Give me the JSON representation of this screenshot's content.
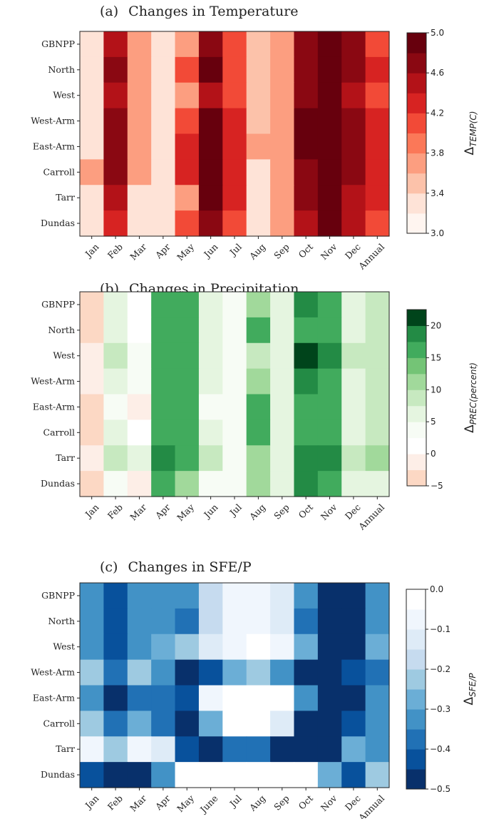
{
  "chart_data": [
    {
      "type": "heatmap",
      "title": "Changes in Temperature",
      "panel": "(a)",
      "rows": [
        "GBNPP",
        "North",
        "West",
        "West-Arm",
        "East-Arm",
        "Carroll",
        "Tarr",
        "Dundas"
      ],
      "columns": [
        "Jan",
        "Feb",
        "Mar",
        "Apr",
        "May",
        "Jun",
        "Jul",
        "Aug",
        "Sep",
        "Oct",
        "Nov",
        "Dec",
        "Annual"
      ],
      "values": [
        [
          3.4,
          4.5,
          3.6,
          3.3,
          3.8,
          4.7,
          4.0,
          3.5,
          3.6,
          4.7,
          4.9,
          4.7,
          4.0
        ],
        [
          3.4,
          4.7,
          3.6,
          3.3,
          4.0,
          4.9,
          4.0,
          3.5,
          3.6,
          4.7,
          4.9,
          4.7,
          4.2
        ],
        [
          3.4,
          4.5,
          3.6,
          3.3,
          3.8,
          4.5,
          4.0,
          3.5,
          3.6,
          4.7,
          4.9,
          4.5,
          4.0
        ],
        [
          3.4,
          4.7,
          3.6,
          3.3,
          4.0,
          4.9,
          4.2,
          3.5,
          3.6,
          4.9,
          4.9,
          4.7,
          4.2
        ],
        [
          3.4,
          4.7,
          3.6,
          3.4,
          4.2,
          4.9,
          4.2,
          3.6,
          3.8,
          4.9,
          4.9,
          4.7,
          4.2
        ],
        [
          3.6,
          4.7,
          3.8,
          3.4,
          4.2,
          4.9,
          4.2,
          3.4,
          3.6,
          4.7,
          4.9,
          4.7,
          4.2
        ],
        [
          3.3,
          4.5,
          3.4,
          3.3,
          3.8,
          4.9,
          4.2,
          3.4,
          3.6,
          4.7,
          4.9,
          4.5,
          4.2
        ],
        [
          3.3,
          4.2,
          3.4,
          3.3,
          4.0,
          4.7,
          4.0,
          3.4,
          3.6,
          4.5,
          4.9,
          4.5,
          4.0
        ]
      ],
      "colorbar": {
        "min": 3.0,
        "max": 5.0,
        "ticks": [
          3.0,
          3.4,
          3.8,
          4.2,
          4.6,
          5.0
        ],
        "tick_labels": [
          "3.0",
          "3.4",
          "3.8",
          "4.2",
          "4.6",
          "5.0"
        ],
        "label": "Δ",
        "label_sub": "TEMP(C)",
        "levels": 10
      },
      "colormap": "Reds",
      "colors": [
        "#fff5f0",
        "#fee3d7",
        "#fcc2aa",
        "#fc9e80",
        "#fb7858",
        "#f24a37",
        "#d72322",
        "#b31218",
        "#8a0812",
        "#67000d"
      ]
    },
    {
      "type": "heatmap",
      "title": "Changes in Precipitation",
      "panel": "(b)",
      "rows": [
        "GBNPP",
        "North",
        "West",
        "West-Arm",
        "East-Arm",
        "Carroll",
        "Tarr",
        "Dundas"
      ],
      "columns": [
        "Jan",
        "Feb",
        "Mar",
        "Apr",
        "May",
        "Jun",
        "Jul",
        "Aug",
        "Sep",
        "Oct",
        "Nov",
        "Dec",
        "Annual"
      ],
      "values": [
        [
          -3,
          5,
          0,
          17,
          15,
          5,
          3,
          12,
          5,
          18,
          17,
          5,
          8
        ],
        [
          -3,
          5,
          0,
          17,
          15,
          5,
          3,
          15,
          5,
          17,
          15,
          5,
          8
        ],
        [
          -1,
          8,
          3,
          17,
          15,
          5,
          3,
          8,
          5,
          22,
          18,
          8,
          8
        ],
        [
          -1,
          5,
          3,
          17,
          15,
          5,
          3,
          12,
          5,
          18,
          17,
          5,
          8
        ],
        [
          -3,
          3,
          -1,
          15,
          15,
          3,
          3,
          17,
          5,
          15,
          15,
          5,
          8
        ],
        [
          -3,
          5,
          0,
          17,
          15,
          5,
          3,
          15,
          5,
          17,
          15,
          5,
          8
        ],
        [
          -1,
          8,
          5,
          18,
          17,
          8,
          3,
          12,
          5,
          18,
          18,
          8,
          12
        ],
        [
          -3,
          3,
          -1,
          15,
          12,
          3,
          3,
          12,
          5,
          18,
          15,
          5,
          5
        ]
      ],
      "colorbar": {
        "min": -5,
        "max": 22.5,
        "ticks": [
          -5,
          0,
          5,
          10,
          15,
          20
        ],
        "tick_labels": [
          "−5",
          "0",
          "5",
          "10",
          "15",
          "20"
        ],
        "label": "Δ",
        "label_sub": "PREC(percent)",
        "levels": 11
      },
      "colormap": "Greens",
      "colors": [
        "#fcd8c4",
        "#fdeee7",
        "#ffffff",
        "#f7fcf5",
        "#e5f5e0",
        "#c7e9c0",
        "#a1d99b",
        "#74c476",
        "#41ab5d",
        "#238b45",
        "#00441b"
      ]
    },
    {
      "type": "heatmap",
      "title": "Changes in SFE/P",
      "panel": "(c)",
      "rows": [
        "GBNPP",
        "North",
        "West",
        "West-Arm",
        "East-Arm",
        "Carroll",
        "Tarr",
        "Dundas"
      ],
      "columns": [
        "Jan",
        "Feb",
        "Mar",
        "Apr",
        "May",
        "June",
        "Jul",
        "Aug",
        "Sep",
        "Oct",
        "Nov",
        "Dec",
        "Annual"
      ],
      "values": [
        [
          -0.32,
          -0.42,
          -0.32,
          -0.32,
          -0.32,
          -0.2,
          -0.1,
          -0.1,
          -0.15,
          -0.32,
          -0.48,
          -0.48,
          -0.32
        ],
        [
          -0.32,
          -0.42,
          -0.32,
          -0.32,
          -0.38,
          -0.2,
          -0.1,
          -0.1,
          -0.15,
          -0.38,
          -0.48,
          -0.48,
          -0.32
        ],
        [
          -0.32,
          -0.42,
          -0.32,
          -0.28,
          -0.22,
          -0.15,
          -0.1,
          -0.05,
          -0.1,
          -0.28,
          -0.48,
          -0.48,
          -0.28
        ],
        [
          -0.22,
          -0.38,
          -0.22,
          -0.32,
          -0.48,
          -0.42,
          -0.28,
          -0.22,
          -0.32,
          -0.48,
          -0.48,
          -0.42,
          -0.38
        ],
        [
          -0.32,
          -0.48,
          -0.38,
          -0.38,
          -0.42,
          -0.1,
          0,
          0,
          -0.05,
          -0.32,
          -0.48,
          -0.48,
          -0.32
        ],
        [
          -0.22,
          -0.38,
          -0.28,
          -0.38,
          -0.48,
          -0.28,
          -0.05,
          0,
          -0.15,
          -0.48,
          -0.48,
          -0.42,
          -0.32
        ],
        [
          -0.1,
          -0.22,
          -0.1,
          -0.15,
          -0.42,
          -0.48,
          -0.38,
          -0.38,
          -0.48,
          -0.48,
          -0.48,
          -0.28,
          -0.32
        ],
        [
          -0.42,
          -0.48,
          -0.48,
          -0.32,
          -0.05,
          0,
          0,
          0,
          0,
          -0.05,
          -0.28,
          -0.42,
          -0.22
        ]
      ],
      "colorbar": {
        "min": -0.5,
        "max": 0.0,
        "ticks": [
          -0.5,
          -0.4,
          -0.3,
          -0.2,
          -0.1,
          0.0
        ],
        "tick_labels": [
          "−0.5",
          "−0.4",
          "−0.3",
          "−0.2",
          "−0.1",
          "0.0"
        ],
        "label": "Δ",
        "label_sub": "SFE/P",
        "levels": 10
      },
      "colormap": "Blues_r",
      "colors": [
        "#08306b",
        "#08519c",
        "#2171b5",
        "#4292c6",
        "#6baed6",
        "#9ecae1",
        "#c6dbef",
        "#deebf7",
        "#f0f6fd",
        "#ffffff"
      ]
    }
  ]
}
